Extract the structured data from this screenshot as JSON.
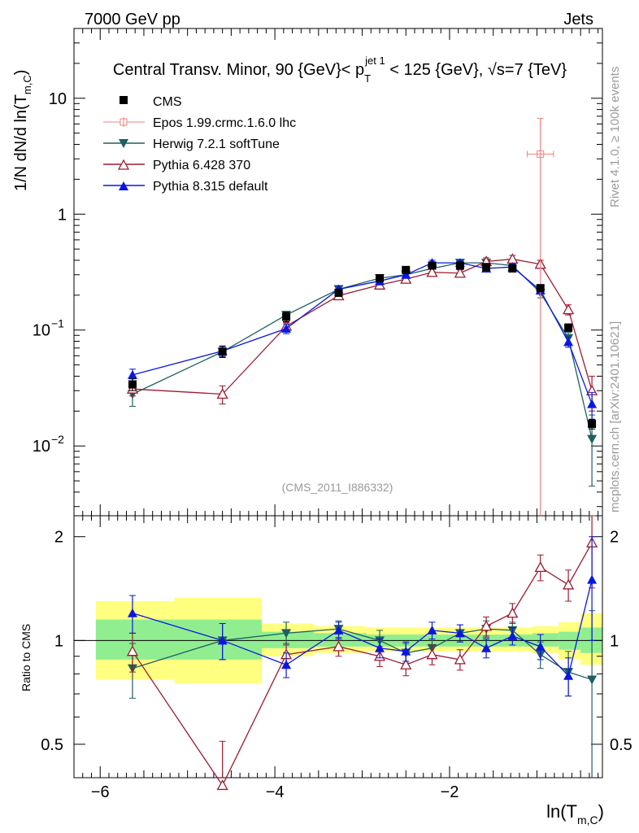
{
  "header": {
    "left": "7000 GeV pp",
    "right": "Jets",
    "title_prefix": "Central Transv. Minor, 90 {GeV}< p",
    "title_sub": "T",
    "title_sup": "jet 1",
    "title_suffix": " < 125 {GeV}, √s=7 {TeV}"
  },
  "side_labels": {
    "rivet": "Rivet 4.1.0, ≥ 100k events",
    "mcplots": "mcplots.cern.ch [arXiv:2401.10621]"
  },
  "watermark": "(CMS_2011_I886332)",
  "chart_data": [
    {
      "type": "scatter",
      "panel": "main",
      "title": "Central Transv. Minor",
      "ylabel_prefix": "1/N    dN/d ln(T",
      "ylabel_sub": "m,C",
      "ylabel_suffix": ")",
      "yscale": "log",
      "ylim": [
        0.0025,
        40
      ],
      "xlim": [
        -6.3,
        -0.25
      ],
      "yticks": [
        {
          "value": 0.01,
          "base": "10",
          "exp": "−2"
        },
        {
          "value": 0.1,
          "base": "10",
          "exp": "−1"
        },
        {
          "value": 1,
          "base": "1",
          "exp": ""
        },
        {
          "value": 10,
          "base": "10",
          "exp": ""
        }
      ],
      "series": [
        {
          "name": "CMS",
          "color": "#000000",
          "marker": "square",
          "x": [
            -5.63,
            -4.6,
            -3.87,
            -3.27,
            -2.8,
            -2.5,
            -2.2,
            -1.88,
            -1.58,
            -1.28,
            -0.96,
            -0.64,
            -0.37
          ],
          "y": [
            0.034,
            0.065,
            0.13,
            0.21,
            0.28,
            0.33,
            0.36,
            0.36,
            0.35,
            0.34,
            0.23,
            0.105,
            0.0155
          ],
          "err": [
            0.004,
            0.007,
            0.012,
            0.015,
            0.02,
            0.02,
            0.02,
            0.02,
            0.02,
            0.02,
            0.015,
            0.008,
            0.0015
          ]
        },
        {
          "name": "Epos 1.99.crmc.1.6.0 lhc",
          "color": "#f08080",
          "marker": "open-cross",
          "x": [
            -0.96
          ],
          "y": [
            3.3
          ],
          "err_lo": [
            3.3
          ],
          "err_hi": [
            3.4
          ],
          "xerr": [
            0.15
          ]
        },
        {
          "name": "Herwig 7.2.1 softTune",
          "color": "#1f5f5f",
          "marker": "triangle-down",
          "x": [
            -5.63,
            -4.6,
            -3.87,
            -3.27,
            -2.8,
            -2.5,
            -2.2,
            -1.88,
            -1.58,
            -1.28,
            -0.96,
            -0.64,
            -0.37
          ],
          "y": [
            0.028,
            0.065,
            0.135,
            0.225,
            0.28,
            0.3,
            0.34,
            0.38,
            0.38,
            0.36,
            0.21,
            0.085,
            0.0115
          ],
          "err": [
            0.006,
            0.007,
            0.01,
            0.015,
            0.02,
            0.02,
            0.02,
            0.02,
            0.02,
            0.02,
            0.02,
            0.01,
            0.007
          ]
        },
        {
          "name": "Pythia 6.428 370",
          "color": "#9b1b30",
          "marker": "open-triangle-up",
          "x": [
            -5.63,
            -4.6,
            -3.87,
            -3.27,
            -2.8,
            -2.5,
            -2.2,
            -1.88,
            -1.58,
            -1.28,
            -0.96,
            -0.64,
            -0.37
          ],
          "y": [
            0.031,
            0.028,
            0.108,
            0.198,
            0.245,
            0.275,
            0.315,
            0.31,
            0.39,
            0.41,
            0.37,
            0.15,
            0.03
          ],
          "err": [
            0.004,
            0.005,
            0.008,
            0.01,
            0.02,
            0.02,
            0.02,
            0.02,
            0.03,
            0.03,
            0.03,
            0.015,
            0.01
          ]
        },
        {
          "name": "Pythia 8.315 default",
          "color": "#0b17e0",
          "marker": "triangle-up",
          "x": [
            -5.63,
            -4.6,
            -3.87,
            -3.27,
            -2.8,
            -2.5,
            -2.2,
            -1.88,
            -1.58,
            -1.28,
            -0.96,
            -0.64,
            -0.37
          ],
          "y": [
            0.041,
            0.066,
            0.103,
            0.225,
            0.265,
            0.3,
            0.38,
            0.38,
            0.34,
            0.35,
            0.22,
            0.079,
            0.023
          ],
          "err": [
            0.005,
            0.007,
            0.01,
            0.015,
            0.02,
            0.02,
            0.02,
            0.02,
            0.02,
            0.02,
            0.015,
            0.008,
            0.006
          ]
        }
      ]
    },
    {
      "type": "scatter",
      "panel": "ratio",
      "ylabel": "Ratio to CMS",
      "xlabel_prefix": "ln(T",
      "xlabel_sub": "m,C",
      "xlabel_suffix": ")",
      "yscale": "log",
      "ylim": [
        0.4,
        2.3
      ],
      "xlim": [
        -6.3,
        -0.25
      ],
      "xticks": [
        {
          "value": -6,
          "label": "−6"
        },
        {
          "value": -4,
          "label": "−4"
        },
        {
          "value": -2,
          "label": "−2"
        }
      ],
      "yticks": [
        {
          "value": 0.5,
          "label": "0.5"
        },
        {
          "value": 1,
          "label": "1"
        },
        {
          "value": 2,
          "label": "2"
        }
      ],
      "bands": [
        {
          "x0": -6.05,
          "x1": -5.15,
          "yellow": [
            0.77,
            1.3
          ],
          "green": [
            0.88,
            1.15
          ]
        },
        {
          "x0": -5.15,
          "x1": -4.15,
          "yellow": [
            0.75,
            1.33
          ],
          "green": [
            0.88,
            1.15
          ]
        },
        {
          "x0": -4.15,
          "x1": -3.55,
          "yellow": [
            0.9,
            1.12
          ],
          "green": [
            0.95,
            1.06
          ]
        },
        {
          "x0": -3.55,
          "x1": -2.95,
          "yellow": [
            0.92,
            1.1
          ],
          "green": [
            0.96,
            1.05
          ]
        },
        {
          "x0": -2.95,
          "x1": -1.05,
          "yellow": [
            0.93,
            1.09
          ],
          "green": [
            0.96,
            1.04
          ]
        },
        {
          "x0": -1.05,
          "x1": -0.75,
          "yellow": [
            0.92,
            1.1
          ],
          "green": [
            0.96,
            1.05
          ]
        },
        {
          "x0": -0.75,
          "x1": -0.5,
          "yellow": [
            0.88,
            1.13
          ],
          "green": [
            0.94,
            1.06
          ]
        },
        {
          "x0": -0.5,
          "x1": -0.25,
          "yellow": [
            0.85,
            1.2
          ],
          "green": [
            0.92,
            1.09
          ]
        }
      ],
      "series": [
        {
          "name": "Herwig 7.2.1 softTune",
          "color": "#1f5f5f",
          "marker": "triangle-down",
          "x": [
            -5.63,
            -4.6,
            -3.87,
            -3.27,
            -2.8,
            -2.5,
            -2.2,
            -1.88,
            -1.58,
            -1.28,
            -0.96,
            -0.64,
            -0.37
          ],
          "y": [
            0.83,
            1.0,
            1.05,
            1.08,
            1.0,
            0.92,
            0.95,
            1.05,
            1.08,
            1.07,
            0.91,
            0.81,
            0.77
          ],
          "err": [
            0.15,
            0.12,
            0.08,
            0.06,
            0.07,
            0.06,
            0.06,
            0.06,
            0.06,
            0.06,
            0.08,
            0.12,
            0.45
          ]
        },
        {
          "name": "Pythia 6.428 370",
          "color": "#9b1b30",
          "marker": "open-triangle-up",
          "x": [
            -5.63,
            -4.6,
            -3.87,
            -3.27,
            -2.8,
            -2.5,
            -2.2,
            -1.88,
            -1.58,
            -1.28,
            -0.96,
            -0.64,
            -0.37
          ],
          "y": [
            0.93,
            0.38,
            0.91,
            0.96,
            0.9,
            0.85,
            0.91,
            0.88,
            1.1,
            1.2,
            1.63,
            1.45,
            1.92
          ],
          "err": [
            0.12,
            0.13,
            0.07,
            0.06,
            0.06,
            0.06,
            0.06,
            0.06,
            0.07,
            0.08,
            0.14,
            0.15,
            0.5
          ]
        },
        {
          "name": "Pythia 8.315 default",
          "color": "#0b17e0",
          "marker": "triangle-up",
          "x": [
            -5.63,
            -4.6,
            -3.87,
            -3.27,
            -2.8,
            -2.5,
            -2.2,
            -1.88,
            -1.58,
            -1.28,
            -0.96,
            -0.64,
            -0.37
          ],
          "y": [
            1.2,
            1.0,
            0.85,
            1.07,
            0.95,
            0.93,
            1.07,
            1.05,
            0.95,
            1.03,
            0.96,
            0.79,
            1.5
          ],
          "err": [
            0.15,
            0.12,
            0.07,
            0.06,
            0.06,
            0.06,
            0.06,
            0.06,
            0.06,
            0.06,
            0.08,
            0.1,
            0.5
          ]
        }
      ]
    }
  ]
}
